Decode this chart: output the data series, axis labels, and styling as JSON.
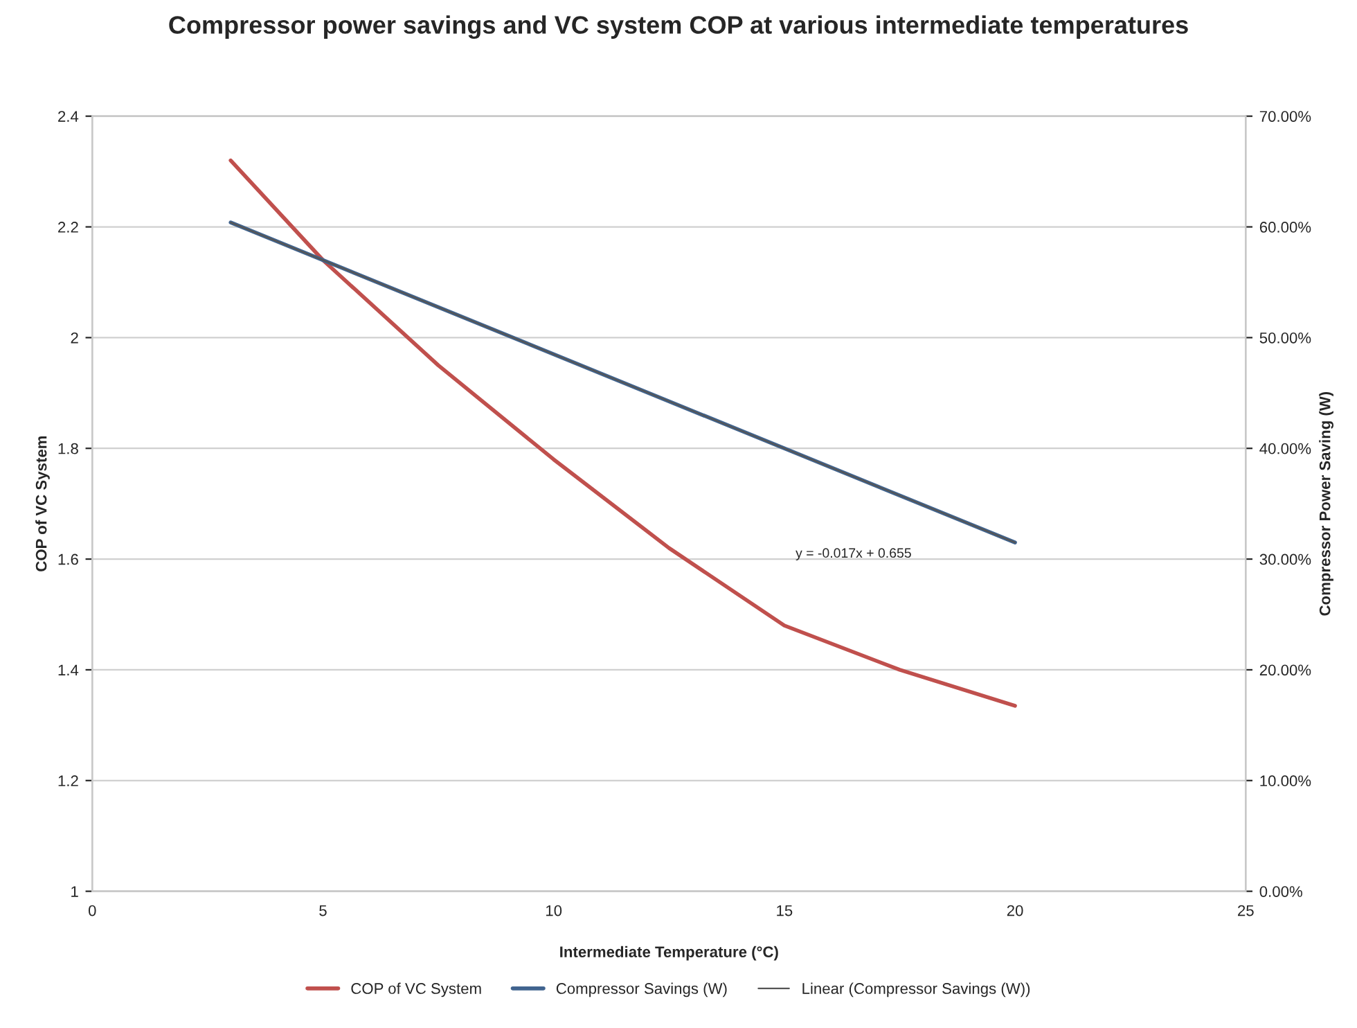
{
  "chart_data": {
    "type": "line",
    "title": "Compressor power savings and VC system COP at various intermediate temperatures",
    "xlabel": "Intermediate Temperature (°C)",
    "ylabel": "COP of VC System",
    "y2label": "Compressor Power Saving (W)",
    "series": [
      {
        "name": "COP of VC System",
        "color": "#c0504d",
        "x": [
          3,
          5,
          7.5,
          10,
          12.5,
          15,
          17.5,
          20
        ],
        "values": [
          2.32,
          2.14,
          1.95,
          1.78,
          1.62,
          1.48,
          1.4,
          1.335
        ]
      },
      {
        "name": "Compressor Savings (W)",
        "color": "#41648f",
        "axis": "y2",
        "x": [
          3,
          20
        ],
        "values": [
          60.4,
          31.5
        ]
      },
      {
        "name": "Linear (Compressor Savings (W))",
        "color": "#555555",
        "axis": "y2",
        "x": [
          3,
          20
        ],
        "values": [
          60.4,
          31.5
        ]
      }
    ],
    "annotations": [
      "y = -0.017x + 0.655"
    ],
    "xlim": [
      0,
      25
    ],
    "xticks": [
      0,
      5,
      10,
      15,
      20,
      25
    ],
    "ylim": [
      1,
      2.4
    ],
    "yticks": [
      1,
      1.2,
      1.4,
      1.6,
      1.8,
      2,
      2.2,
      2.4
    ],
    "y2lim": [
      0,
      70
    ],
    "y2ticks": [
      {
        "value": 0,
        "label": "0.00%"
      },
      {
        "value": 10,
        "label": "10.00%"
      },
      {
        "value": 20,
        "label": "20.00%"
      },
      {
        "value": 30,
        "label": "30.00%"
      },
      {
        "value": 40,
        "label": "40.00%"
      },
      {
        "value": 50,
        "label": "50.00%"
      },
      {
        "value": 60,
        "label": "60.00%"
      },
      {
        "value": 70,
        "label": "70.00%"
      }
    ],
    "grid": "y",
    "legend": "bottom",
    "marker": "none",
    "line_style": "solid"
  }
}
